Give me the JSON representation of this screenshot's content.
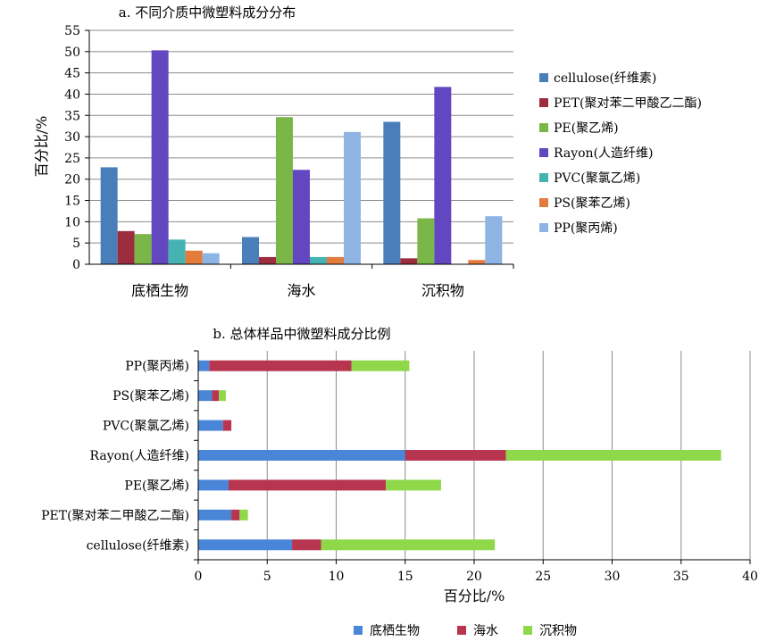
{
  "chart_data": [
    {
      "type": "bar",
      "title": "a. 不同介质中微塑料成分分布",
      "xlabel": "",
      "ylabel": "百分比/%",
      "ylim": [
        0,
        55
      ],
      "yticks": [
        0,
        5,
        10,
        15,
        20,
        25,
        30,
        35,
        40,
        45,
        50,
        55
      ],
      "grid": true,
      "legend": "right",
      "categories": [
        "底栖生物",
        "海水",
        "沉积物"
      ],
      "series": [
        {
          "name": "cellulose(纤维素)",
          "color": "#4a7ebb",
          "values": [
            22.8,
            6.4,
            33.5
          ]
        },
        {
          "name": "PET(聚对苯二甲酸乙二酯)",
          "color": "#9b2d3f",
          "values": [
            7.8,
            1.7,
            1.4
          ]
        },
        {
          "name": "PE(聚乙烯)",
          "color": "#7ab648",
          "values": [
            7.1,
            34.6,
            10.8
          ]
        },
        {
          "name": "Rayon(人造纤维)",
          "color": "#6347c0",
          "values": [
            50.3,
            22.2,
            41.7
          ]
        },
        {
          "name": "PVC(聚氯乙烯)",
          "color": "#46b3b3",
          "values": [
            5.8,
            1.7,
            0
          ]
        },
        {
          "name": "PS(聚苯乙烯)",
          "color": "#e27b3c",
          "values": [
            3.2,
            1.7,
            1.0
          ]
        },
        {
          "name": "PP(聚丙烯)",
          "color": "#8db4e3",
          "values": [
            2.6,
            31.1,
            11.3
          ]
        }
      ]
    },
    {
      "type": "bar",
      "orientation": "horizontal",
      "stacked": true,
      "title": "b. 总体样品中微塑料成分比例",
      "xlabel": "百分比/%",
      "ylabel": "",
      "xlim": [
        0,
        40
      ],
      "xticks": [
        0,
        5,
        10,
        15,
        20,
        25,
        30,
        35,
        40
      ],
      "grid": true,
      "legend": "bottom",
      "categories": [
        "PP(聚丙烯)",
        "PS(聚苯乙烯)",
        "PVC(聚氯乙烯)",
        "Rayon(人造纤维)",
        "PE(聚乙烯)",
        "PET(聚对苯二甲酸乙二酯)",
        "cellulose(纤维素)"
      ],
      "series": [
        {
          "name": "底栖生物",
          "color": "#4a86d8",
          "values": [
            0.8,
            1.0,
            1.8,
            15.0,
            2.2,
            2.4,
            6.8
          ]
        },
        {
          "name": "海水",
          "color": "#b8354f",
          "values": [
            10.3,
            0.5,
            0.6,
            7.3,
            11.4,
            0.6,
            2.1
          ]
        },
        {
          "name": "沉积物",
          "color": "#8fd84a",
          "values": [
            4.2,
            0.5,
            0,
            15.6,
            4.0,
            0.6,
            12.6
          ]
        }
      ]
    }
  ]
}
